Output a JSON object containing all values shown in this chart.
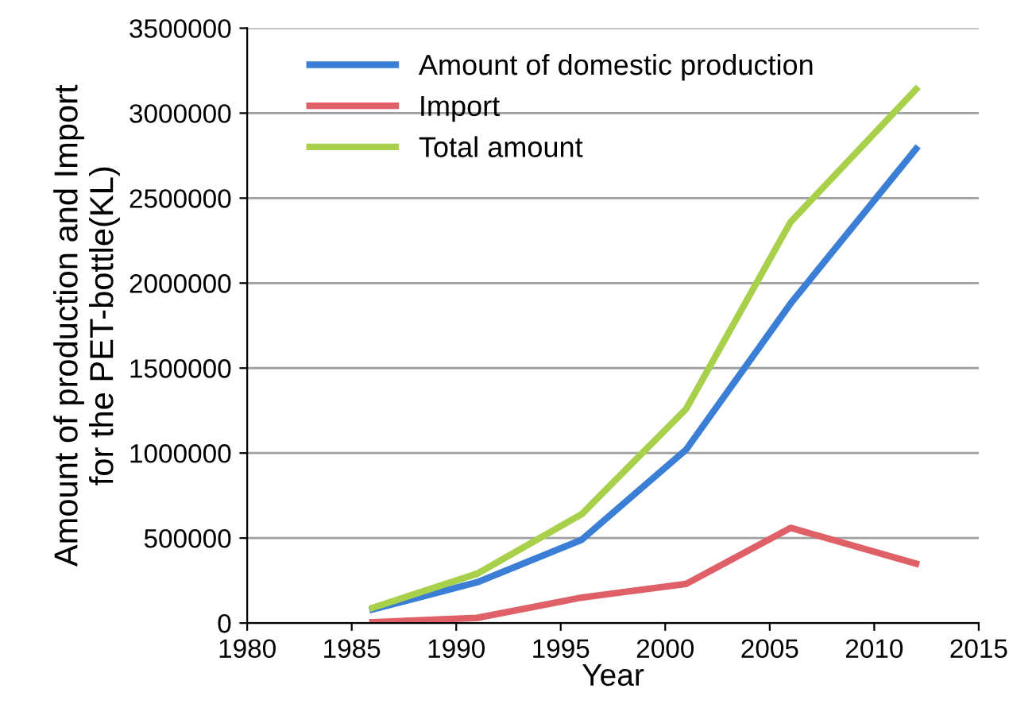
{
  "chart_data": {
    "type": "line",
    "xlabel": "Year",
    "ylabel": "Amount of production and Import\nfor the PET-bottle(KL)",
    "x": [
      1986,
      1991,
      1996,
      2001,
      2006,
      2012
    ],
    "series": [
      {
        "name": "Amount of domestic production",
        "color": "#3a7fd5",
        "values": [
          80000,
          240000,
          490000,
          1020000,
          1880000,
          2790000
        ]
      },
      {
        "name": "Import",
        "color": "#e06068",
        "values": [
          5000,
          30000,
          150000,
          230000,
          560000,
          350000
        ]
      },
      {
        "name": "Total amount",
        "color": "#a8d04a",
        "values": [
          90000,
          290000,
          640000,
          1260000,
          2360000,
          3140000
        ]
      }
    ],
    "xlim": [
      1980,
      2015
    ],
    "xticks": [
      1980,
      1985,
      1990,
      1995,
      2000,
      2005,
      2010,
      2015
    ],
    "ylim": [
      0,
      3500000
    ],
    "yticks": [
      0,
      500000,
      1000000,
      1500000,
      2000000,
      2500000,
      3000000,
      3500000
    ],
    "grid": "y",
    "legend": "top left",
    "marker": "none",
    "line_style": "solid"
  }
}
